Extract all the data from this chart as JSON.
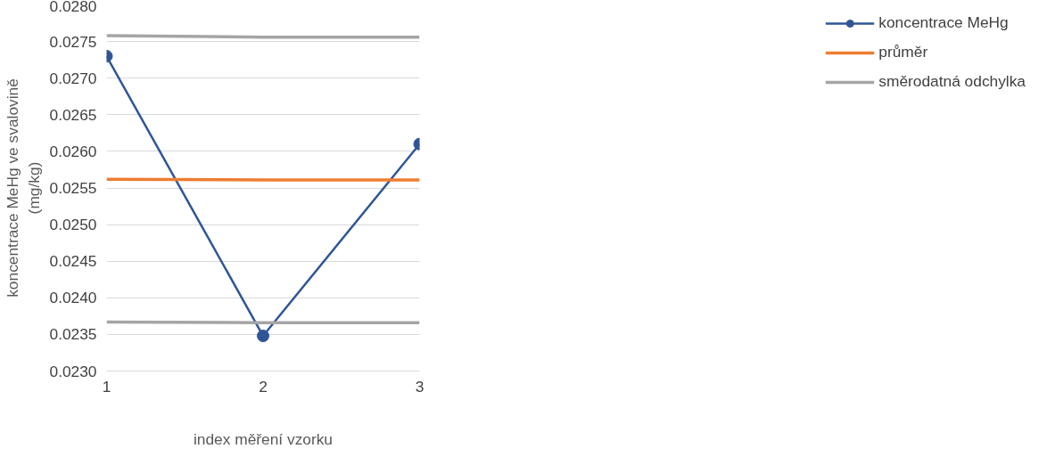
{
  "chart_data": {
    "type": "line",
    "xlabel": "index měření vzorku",
    "ylabel": "koncentrace MeHg ve svalovině (mg/kg)",
    "x": [
      1,
      2,
      3
    ],
    "xlim": [
      1,
      3
    ],
    "xticks": [
      1,
      2,
      3
    ],
    "ylim": [
      0.023,
      0.028
    ],
    "yticks": [
      {
        "value": 0.023,
        "label": "0.0230"
      },
      {
        "value": 0.0235,
        "label": "0.0235"
      },
      {
        "value": 0.024,
        "label": "0.0240"
      },
      {
        "value": 0.0245,
        "label": "0.0245"
      },
      {
        "value": 0.025,
        "label": "0.0250"
      },
      {
        "value": 0.0255,
        "label": "0.0255"
      },
      {
        "value": 0.026,
        "label": "0.0260"
      },
      {
        "value": 0.0265,
        "label": "0.0265"
      },
      {
        "value": 0.027,
        "label": "0.0270"
      },
      {
        "value": 0.0275,
        "label": "0.0275"
      },
      {
        "value": 0.028,
        "label": "0.0280"
      }
    ],
    "series": [
      {
        "name": "koncentrace MeHg",
        "color": "#2f5597",
        "values": [
          0.0273,
          0.02348,
          0.0261
        ],
        "marker": "circle"
      },
      {
        "name": "průměr",
        "color": "#ed7d31",
        "values": [
          0.02562,
          0.02561,
          0.02561
        ],
        "marker": "none"
      },
      {
        "name": "směrodatná odchylka",
        "color": "#a5a5a5",
        "values": [
          0.02758,
          0.02756,
          0.02756
        ],
        "marker": "none"
      },
      {
        "color": "#a5a5a5",
        "values": [
          0.02367,
          0.02366,
          0.02366
        ],
        "marker": "none"
      }
    ],
    "grid": "y",
    "legend": "right",
    "line_style": "solid"
  }
}
